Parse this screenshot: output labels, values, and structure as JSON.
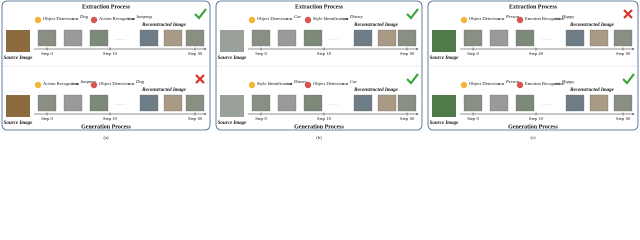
{
  "panels": [
    {
      "label": "(a)",
      "rows": [
        {
          "header": "Extraction Process",
          "operations": [
            {
              "name": "Object Detection",
              "output": "Dog"
            },
            {
              "name": "Action Recognition",
              "output": "Jumping"
            }
          ],
          "result": "Reconstructed Image",
          "source": "Source Image",
          "steps": [
            "Step 0",
            "Step 10",
            "Step 30"
          ],
          "correct": true
        },
        {
          "operations": [
            {
              "name": "Action Recognition",
              "output": "Jumping"
            },
            {
              "name": "Object Detection",
              "output": "Dog"
            }
          ],
          "result": "Reconstructed Image",
          "source": "Source Image",
          "steps": [
            "Step 0",
            "Step 10",
            "Step 30"
          ],
          "footer": "Generation Process",
          "correct": false
        }
      ]
    },
    {
      "label": "(b)",
      "rows": [
        {
          "header": "Extraction Process",
          "operations": [
            {
              "name": "Object Detection",
              "output": "Car"
            },
            {
              "name": "Style Identification",
              "output": "Disney"
            }
          ],
          "result": "Reconstructed Image",
          "source": "Source Image",
          "steps": [
            "Step 0",
            "Step 10",
            "Step 30"
          ],
          "correct": true
        },
        {
          "operations": [
            {
              "name": "Style Identification",
              "output": "Disney"
            },
            {
              "name": "Object Detection",
              "output": "Car"
            }
          ],
          "result": "Reconstructed Image",
          "source": "Source Image",
          "steps": [
            "Step 0",
            "Step 10",
            "Step 30"
          ],
          "footer": "Generation Process",
          "correct": true
        }
      ]
    },
    {
      "label": "(c)",
      "rows": [
        {
          "header": "Extraction Process",
          "operations": [
            {
              "name": "Object Detection",
              "output": "Person"
            },
            {
              "name": "Emotion Recognition",
              "output": "Happy"
            }
          ],
          "result": "Reconstructed Image",
          "source": "Source Image",
          "steps": [
            "Step 0",
            "Step 20",
            "Step 30"
          ],
          "correct": false
        },
        {
          "operations": [
            {
              "name": "Object Detection",
              "output": "Person"
            },
            {
              "name": "Emotion Recognition",
              "output": "Happy"
            }
          ],
          "result": "Reconstructed Image",
          "source": "Source Image",
          "steps": [
            "Step 0",
            "Step 10",
            "Step 30"
          ],
          "footer": "Generation Process",
          "correct": true
        }
      ]
    }
  ]
}
